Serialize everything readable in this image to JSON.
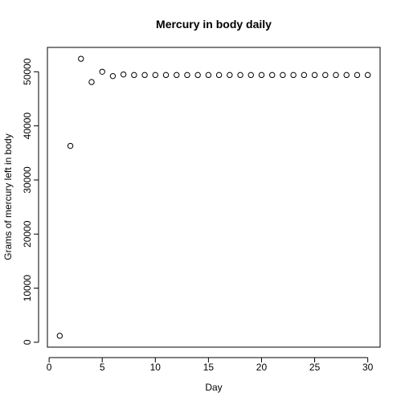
{
  "chart_data": {
    "type": "scatter",
    "title": "Mercury in body daily",
    "xlabel": "Day",
    "ylabel": "Grams of mercury left in body",
    "xlim": [
      -0.16,
      31.16
    ],
    "ylim": [
      -900,
      54500
    ],
    "x_ticks": [
      0,
      5,
      10,
      15,
      20,
      25,
      30
    ],
    "x_tick_labels": [
      "0",
      "5",
      "10",
      "15",
      "20",
      "25",
      "30"
    ],
    "y_ticks": [
      0,
      10000,
      20000,
      30000,
      40000,
      50000
    ],
    "y_tick_labels": [
      "0",
      "10000",
      "20000",
      "30000",
      "40000",
      "50000"
    ],
    "grid": false,
    "marker": "open-circle",
    "color": "#000000",
    "x": [
      1,
      2,
      3,
      4,
      5,
      6,
      7,
      8,
      9,
      10,
      11,
      12,
      13,
      14,
      15,
      16,
      17,
      18,
      19,
      20,
      21,
      22,
      23,
      24,
      25,
      26,
      27,
      28,
      29,
      30
    ],
    "y": [
      1200,
      36300,
      52400,
      48100,
      50000,
      49200,
      49500,
      49400,
      49400,
      49400,
      49400,
      49400,
      49400,
      49400,
      49400,
      49400,
      49400,
      49400,
      49400,
      49400,
      49400,
      49400,
      49400,
      49400,
      49400,
      49400,
      49400,
      49400,
      49400,
      49400
    ]
  }
}
